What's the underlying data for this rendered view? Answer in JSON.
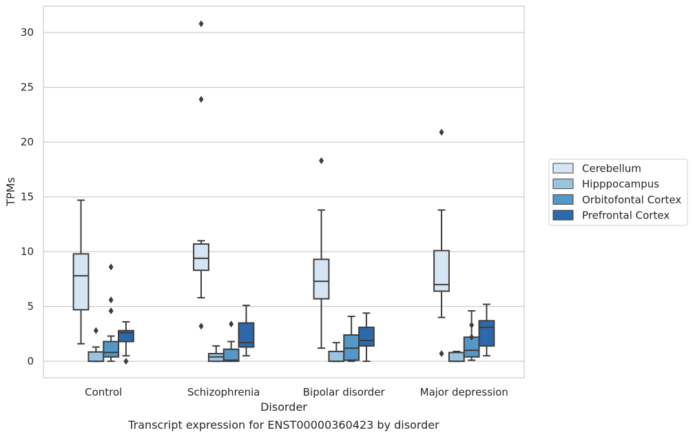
{
  "chart_data": {
    "type": "box",
    "title": "",
    "caption": "Transcript expression for ENST00000360423 by disorder",
    "xlabel": "Disorder",
    "ylabel": "TPMs",
    "ylim": [
      -1.5,
      32.4
    ],
    "yticks": [
      0,
      5,
      10,
      15,
      20,
      25,
      30
    ],
    "grid": "horizontal",
    "legend_position": "right",
    "categories": [
      "Control",
      "Schizophrenia",
      "Bipolar disorder",
      "Major depression"
    ],
    "series": [
      {
        "name": "Cerebellum",
        "color": "#d6e5f3",
        "boxes": [
          {
            "whisker_low": 1.6,
            "q1": 4.7,
            "median": 7.8,
            "q3": 9.8,
            "whisker_high": 14.7,
            "outliers": []
          },
          {
            "whisker_low": 5.8,
            "q1": 8.3,
            "median": 9.4,
            "q3": 10.7,
            "whisker_high": 11.0,
            "outliers": [
              3.2,
              23.9,
              30.8
            ]
          },
          {
            "whisker_low": 1.2,
            "q1": 5.7,
            "median": 7.3,
            "q3": 9.3,
            "whisker_high": 13.8,
            "outliers": [
              18.3
            ]
          },
          {
            "whisker_low": 4.0,
            "q1": 6.4,
            "median": 7.0,
            "q3": 10.1,
            "whisker_high": 13.8,
            "outliers": [
              0.7,
              20.9
            ]
          }
        ]
      },
      {
        "name": "Hipppocampus",
        "color": "#9bc4de",
        "boxes": [
          {
            "whisker_low": 0.0,
            "q1": 0.0,
            "median": 0.0,
            "q3": 0.85,
            "whisker_high": 1.3,
            "outliers": [
              2.8
            ]
          },
          {
            "whisker_low": 0.0,
            "q1": 0.0,
            "median": 0.4,
            "q3": 0.7,
            "whisker_high": 1.4,
            "outliers": []
          },
          {
            "whisker_low": 0.0,
            "q1": 0.0,
            "median": 0.0,
            "q3": 0.9,
            "whisker_high": 1.7,
            "outliers": []
          },
          {
            "whisker_low": 0.0,
            "q1": 0.0,
            "median": 0.0,
            "q3": 0.8,
            "whisker_high": 0.9,
            "outliers": []
          }
        ]
      },
      {
        "name": "Orbitofontal Cortex",
        "color": "#5597c6",
        "boxes": [
          {
            "whisker_low": 0.0,
            "q1": 0.4,
            "median": 0.8,
            "q3": 1.8,
            "whisker_high": 2.3,
            "outliers": [
              4.6,
              5.6,
              8.6
            ]
          },
          {
            "whisker_low": 0.0,
            "q1": 0.0,
            "median": 0.1,
            "q3": 1.1,
            "whisker_high": 1.8,
            "outliers": [
              3.4
            ]
          },
          {
            "whisker_low": 0.0,
            "q1": 0.1,
            "median": 1.2,
            "q3": 2.4,
            "whisker_high": 4.1,
            "outliers": []
          },
          {
            "whisker_low": 0.1,
            "q1": 0.4,
            "median": 1.0,
            "q3": 2.2,
            "whisker_high": 4.6,
            "outliers": [
              2.2,
              3.3
            ]
          }
        ]
      },
      {
        "name": "Prefrontal Cortex",
        "color": "#2d69aa",
        "boxes": [
          {
            "whisker_low": 0.5,
            "q1": 1.8,
            "median": 2.6,
            "q3": 2.8,
            "whisker_high": 3.6,
            "outliers": [
              0.0
            ]
          },
          {
            "whisker_low": 0.5,
            "q1": 1.3,
            "median": 1.7,
            "q3": 3.5,
            "whisker_high": 5.1,
            "outliers": []
          },
          {
            "whisker_low": 0.0,
            "q1": 1.4,
            "median": 1.9,
            "q3": 3.1,
            "whisker_high": 4.4,
            "outliers": []
          },
          {
            "whisker_low": 0.5,
            "q1": 1.4,
            "median": 3.1,
            "q3": 3.7,
            "whisker_high": 5.2,
            "outliers": []
          }
        ]
      }
    ]
  }
}
